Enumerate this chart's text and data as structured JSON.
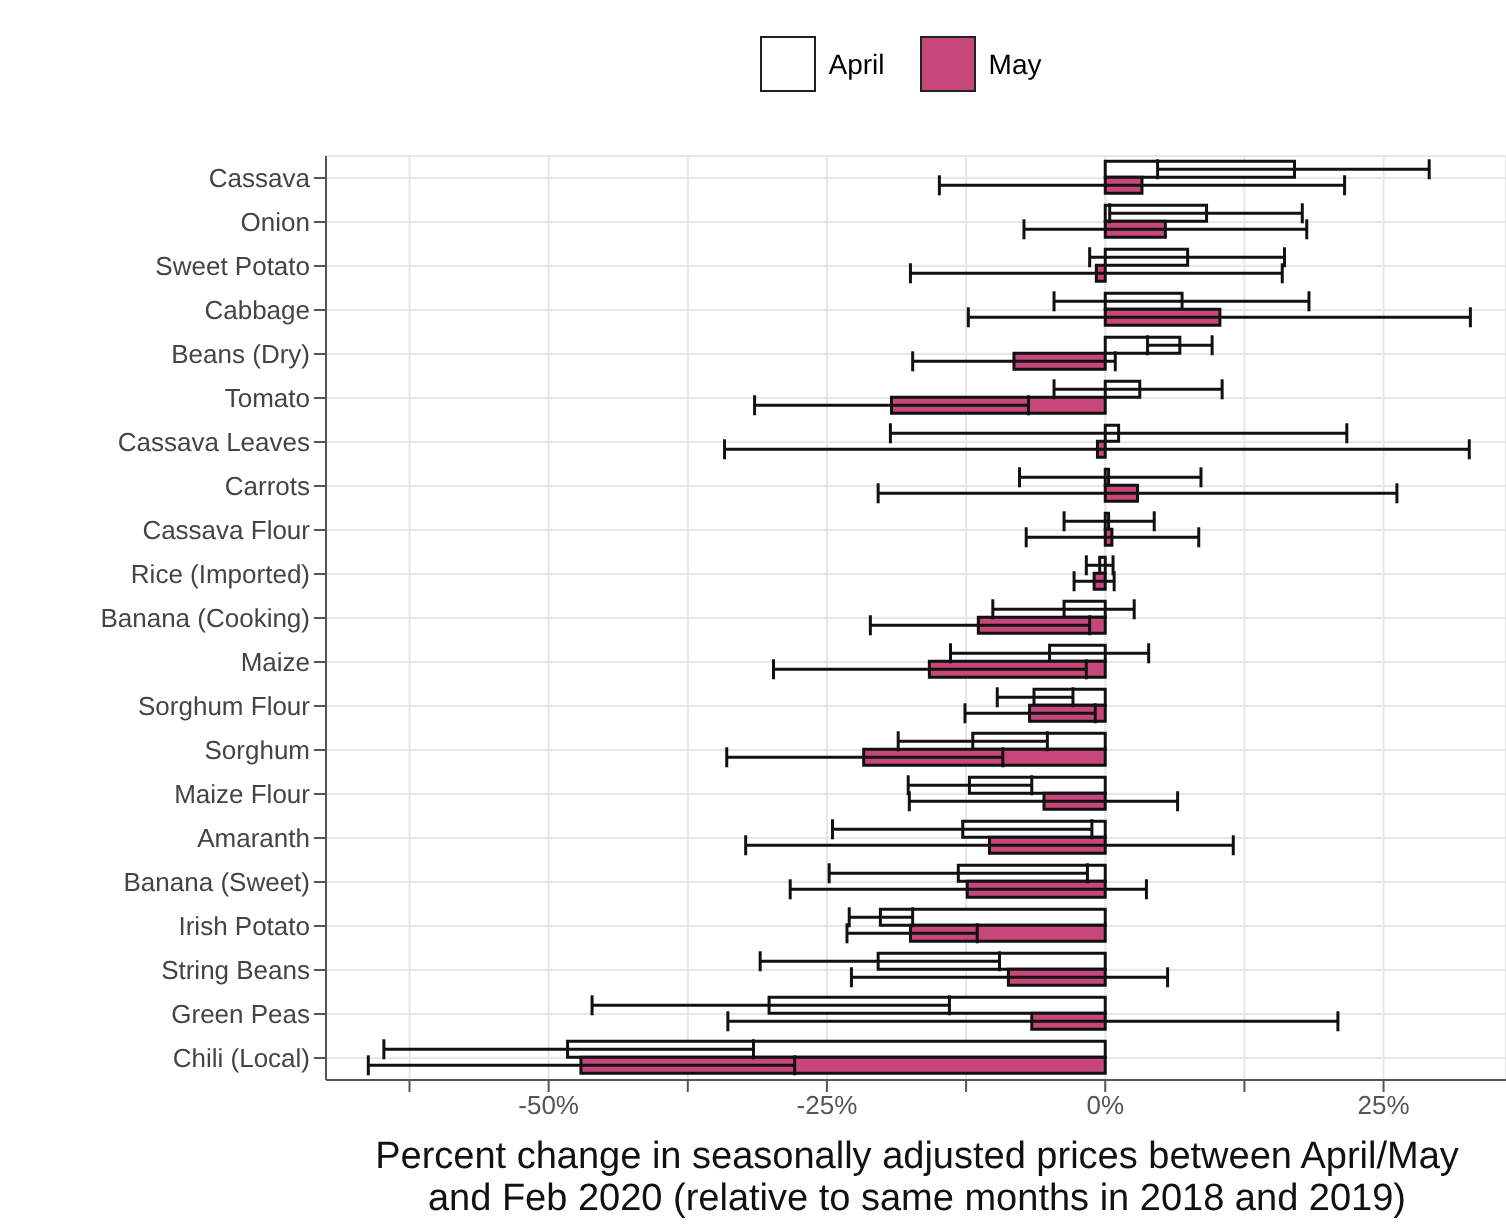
{
  "chart_data": {
    "type": "bar",
    "orientation": "horizontal",
    "xlabel": "Percent change in seasonally adjusted prices between April/May and Feb 2020 (relative to same months in 2018 and 2019)",
    "categories": [
      "Cassava",
      "Onion",
      "Sweet Potato",
      "Cabbage",
      "Beans (Dry)",
      "Tomato",
      "Cassava Leaves",
      "Carrots",
      "Cassava Flour",
      "Rice (Imported)",
      "Banana (Cooking)",
      "Maize",
      "Sorghum Flour",
      "Sorghum",
      "Maize Flour",
      "Amaranth",
      "Banana (Sweet)",
      "Irish Potato",
      "String Beans",
      "Green Peas",
      "Chili (Local)"
    ],
    "series": [
      {
        "name": "April",
        "color": "#ffffff",
        "values": [
          17.0,
          9.1,
          7.4,
          6.9,
          6.7,
          3.1,
          1.2,
          0.3,
          0.3,
          -0.5,
          -3.7,
          -5.0,
          -6.4,
          -11.9,
          -12.2,
          -12.8,
          -13.2,
          -20.2,
          -20.4,
          -30.2,
          -48.3
        ],
        "errors": [
          [
            4.7,
            29.1
          ],
          [
            0.4,
            17.7
          ],
          [
            -1.4,
            16.1
          ],
          [
            -4.6,
            18.3
          ],
          [
            3.8,
            9.6
          ],
          [
            -4.6,
            10.5
          ],
          [
            -19.3,
            21.7
          ],
          [
            -7.7,
            8.6
          ],
          [
            -3.7,
            4.4
          ],
          [
            -1.7,
            0.7
          ],
          [
            -10.1,
            2.6
          ],
          [
            -13.9,
            3.9
          ],
          [
            -9.7,
            -2.9
          ],
          [
            -18.6,
            -5.2
          ],
          [
            -17.7,
            -6.6
          ],
          [
            -24.5,
            -1.2
          ],
          [
            -24.8,
            -1.6
          ],
          [
            -23.0,
            -17.3
          ],
          [
            -31.0,
            -9.5
          ],
          [
            -46.1,
            -14.0
          ],
          [
            -64.8,
            -31.6
          ]
        ]
      },
      {
        "name": "May",
        "color": "#c8477a",
        "values": [
          3.3,
          5.4,
          -0.8,
          10.3,
          -8.2,
          -19.2,
          -0.7,
          2.9,
          0.6,
          -1.0,
          -11.4,
          -15.8,
          -6.8,
          -21.7,
          -5.5,
          -10.4,
          -12.4,
          -17.5,
          -8.7,
          -6.6,
          -47.1
        ],
        "errors": [
          [
            -14.9,
            21.5
          ],
          [
            -7.3,
            18.1
          ],
          [
            -17.5,
            15.9
          ],
          [
            -12.3,
            32.8
          ],
          [
            -17.3,
            0.9
          ],
          [
            -31.5,
            -6.9
          ],
          [
            -34.2,
            32.7
          ],
          [
            -20.4,
            26.2
          ],
          [
            -7.1,
            8.4
          ],
          [
            -2.8,
            0.8
          ],
          [
            -21.1,
            -1.4
          ],
          [
            -29.8,
            -1.7
          ],
          [
            -12.6,
            -0.9
          ],
          [
            -34.0,
            -9.2
          ],
          [
            -17.6,
            6.5
          ],
          [
            -32.3,
            11.5
          ],
          [
            -28.3,
            3.7
          ],
          [
            -23.2,
            -11.5
          ],
          [
            -22.8,
            5.6
          ],
          [
            -33.9,
            20.9
          ],
          [
            -66.2,
            -27.9
          ]
        ]
      }
    ],
    "xlim": [
      -70,
      36
    ],
    "xticks": [
      {
        "value": -62.5,
        "label": null
      },
      {
        "value": -50,
        "label": "-50%"
      },
      {
        "value": -37.5,
        "label": null
      },
      {
        "value": -25,
        "label": "-25%"
      },
      {
        "value": -12.5,
        "label": null
      },
      {
        "value": 0,
        "label": "0%"
      },
      {
        "value": 12.5,
        "label": null
      },
      {
        "value": 25,
        "label": "25%"
      }
    ],
    "grid": true,
    "legend": "top"
  }
}
